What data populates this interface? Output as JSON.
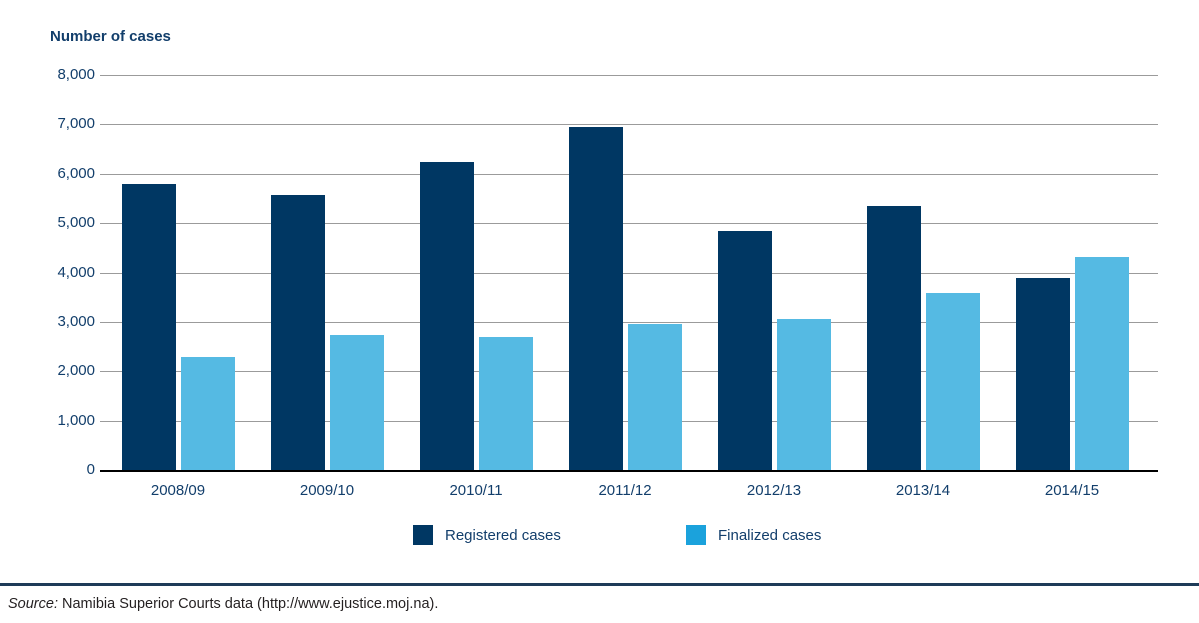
{
  "colors": {
    "registered_bar": "#003763",
    "finalized_bar": "#55BAE3",
    "finalized_legend_swatch": "#1BA2DC",
    "registered_legend_swatch": "#003763",
    "label_text": "#123E6B",
    "gridline": "#9B9B9B",
    "axis_line": "#000000",
    "divider_rule": "#1E3B58",
    "source_text": "#231F20"
  },
  "chart_data": {
    "type": "bar",
    "title": "Number of cases",
    "categories": [
      "2008/09",
      "2009/10",
      "2010/11",
      "2011/12",
      "2012/13",
      "2013/14",
      "2014/15"
    ],
    "series": [
      {
        "name": "Registered cases",
        "color": "#003763",
        "legend_color": "#003763",
        "values": [
          5800,
          5560,
          6230,
          6950,
          4850,
          5340,
          3880
        ]
      },
      {
        "name": "Finalized cases",
        "color": "#55BAE3",
        "legend_color": "#1BA2DC",
        "values": [
          2290,
          2730,
          2700,
          2960,
          3050,
          3590,
          4310
        ]
      }
    ],
    "ylabel": "Number of cases",
    "ylim": [
      0,
      8000
    ],
    "ytick_interval": 1000,
    "yticks": [
      "0",
      "1,000",
      "2,000",
      "3,000",
      "4,000",
      "5,000",
      "6,000",
      "7,000",
      "8,000"
    ],
    "grid": "horizontal-only",
    "legend_position": "bottom"
  },
  "source": {
    "prefix": "Source:",
    "text": " Namibia Superior Courts data (http://www.ejustice.moj.na)."
  }
}
